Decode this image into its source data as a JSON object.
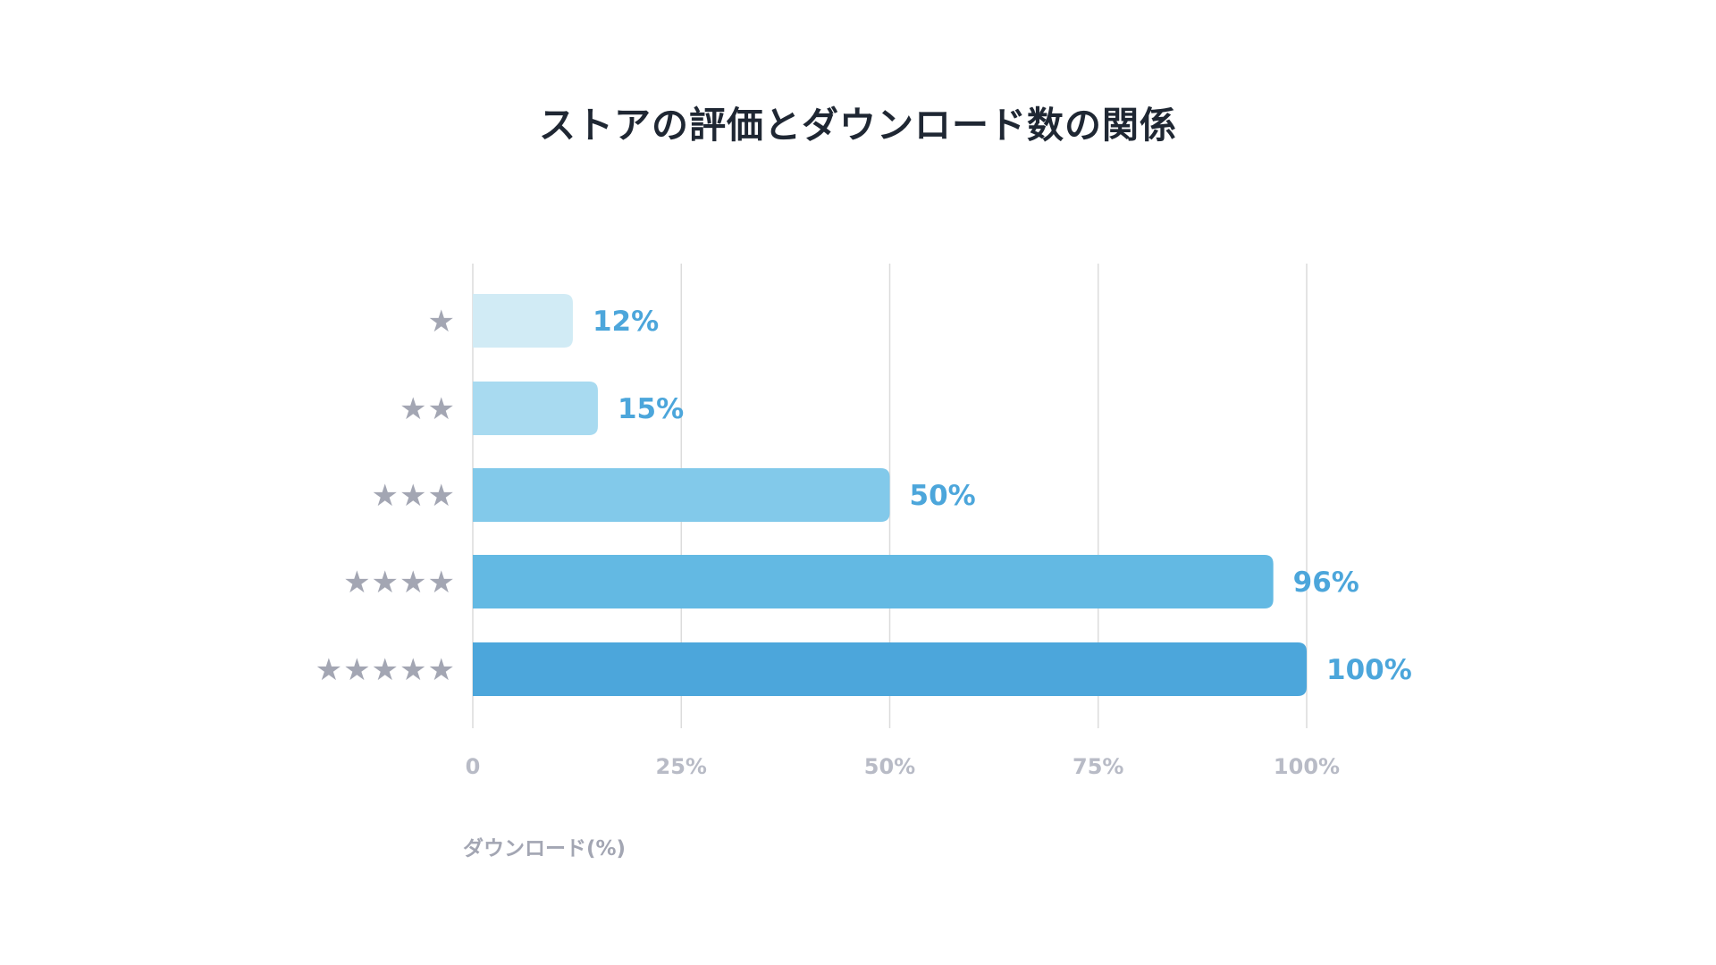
{
  "chart_data": {
    "type": "bar",
    "orientation": "horizontal",
    "title": "ストアの評価とダウンロード数の関係",
    "categories": [
      "★",
      "★★",
      "★★★",
      "★★★★",
      "★★★★★"
    ],
    "values": [
      12,
      15,
      50,
      96,
      100
    ],
    "data_labels": [
      "12%",
      "15%",
      "50%",
      "96%",
      "100%"
    ],
    "bar_colors": [
      "#d1ebf5",
      "#a8daf0",
      "#82c9ea",
      "#63b9e3",
      "#4ca6db"
    ],
    "xlim": [
      0,
      100
    ],
    "x_ticks": [
      0,
      25,
      50,
      75,
      100
    ],
    "x_tick_labels": [
      "0",
      "25%",
      "50%",
      "75%",
      "100%"
    ],
    "xlabel": "ダウンロード(%)",
    "ylabel": "",
    "grid": true,
    "colors": {
      "data_label": "#4ca6db",
      "category_label": "#a3a6b3",
      "tick_label": "#b8bbc6",
      "grid": "#dcdcdc",
      "title": "#1f2733"
    }
  }
}
